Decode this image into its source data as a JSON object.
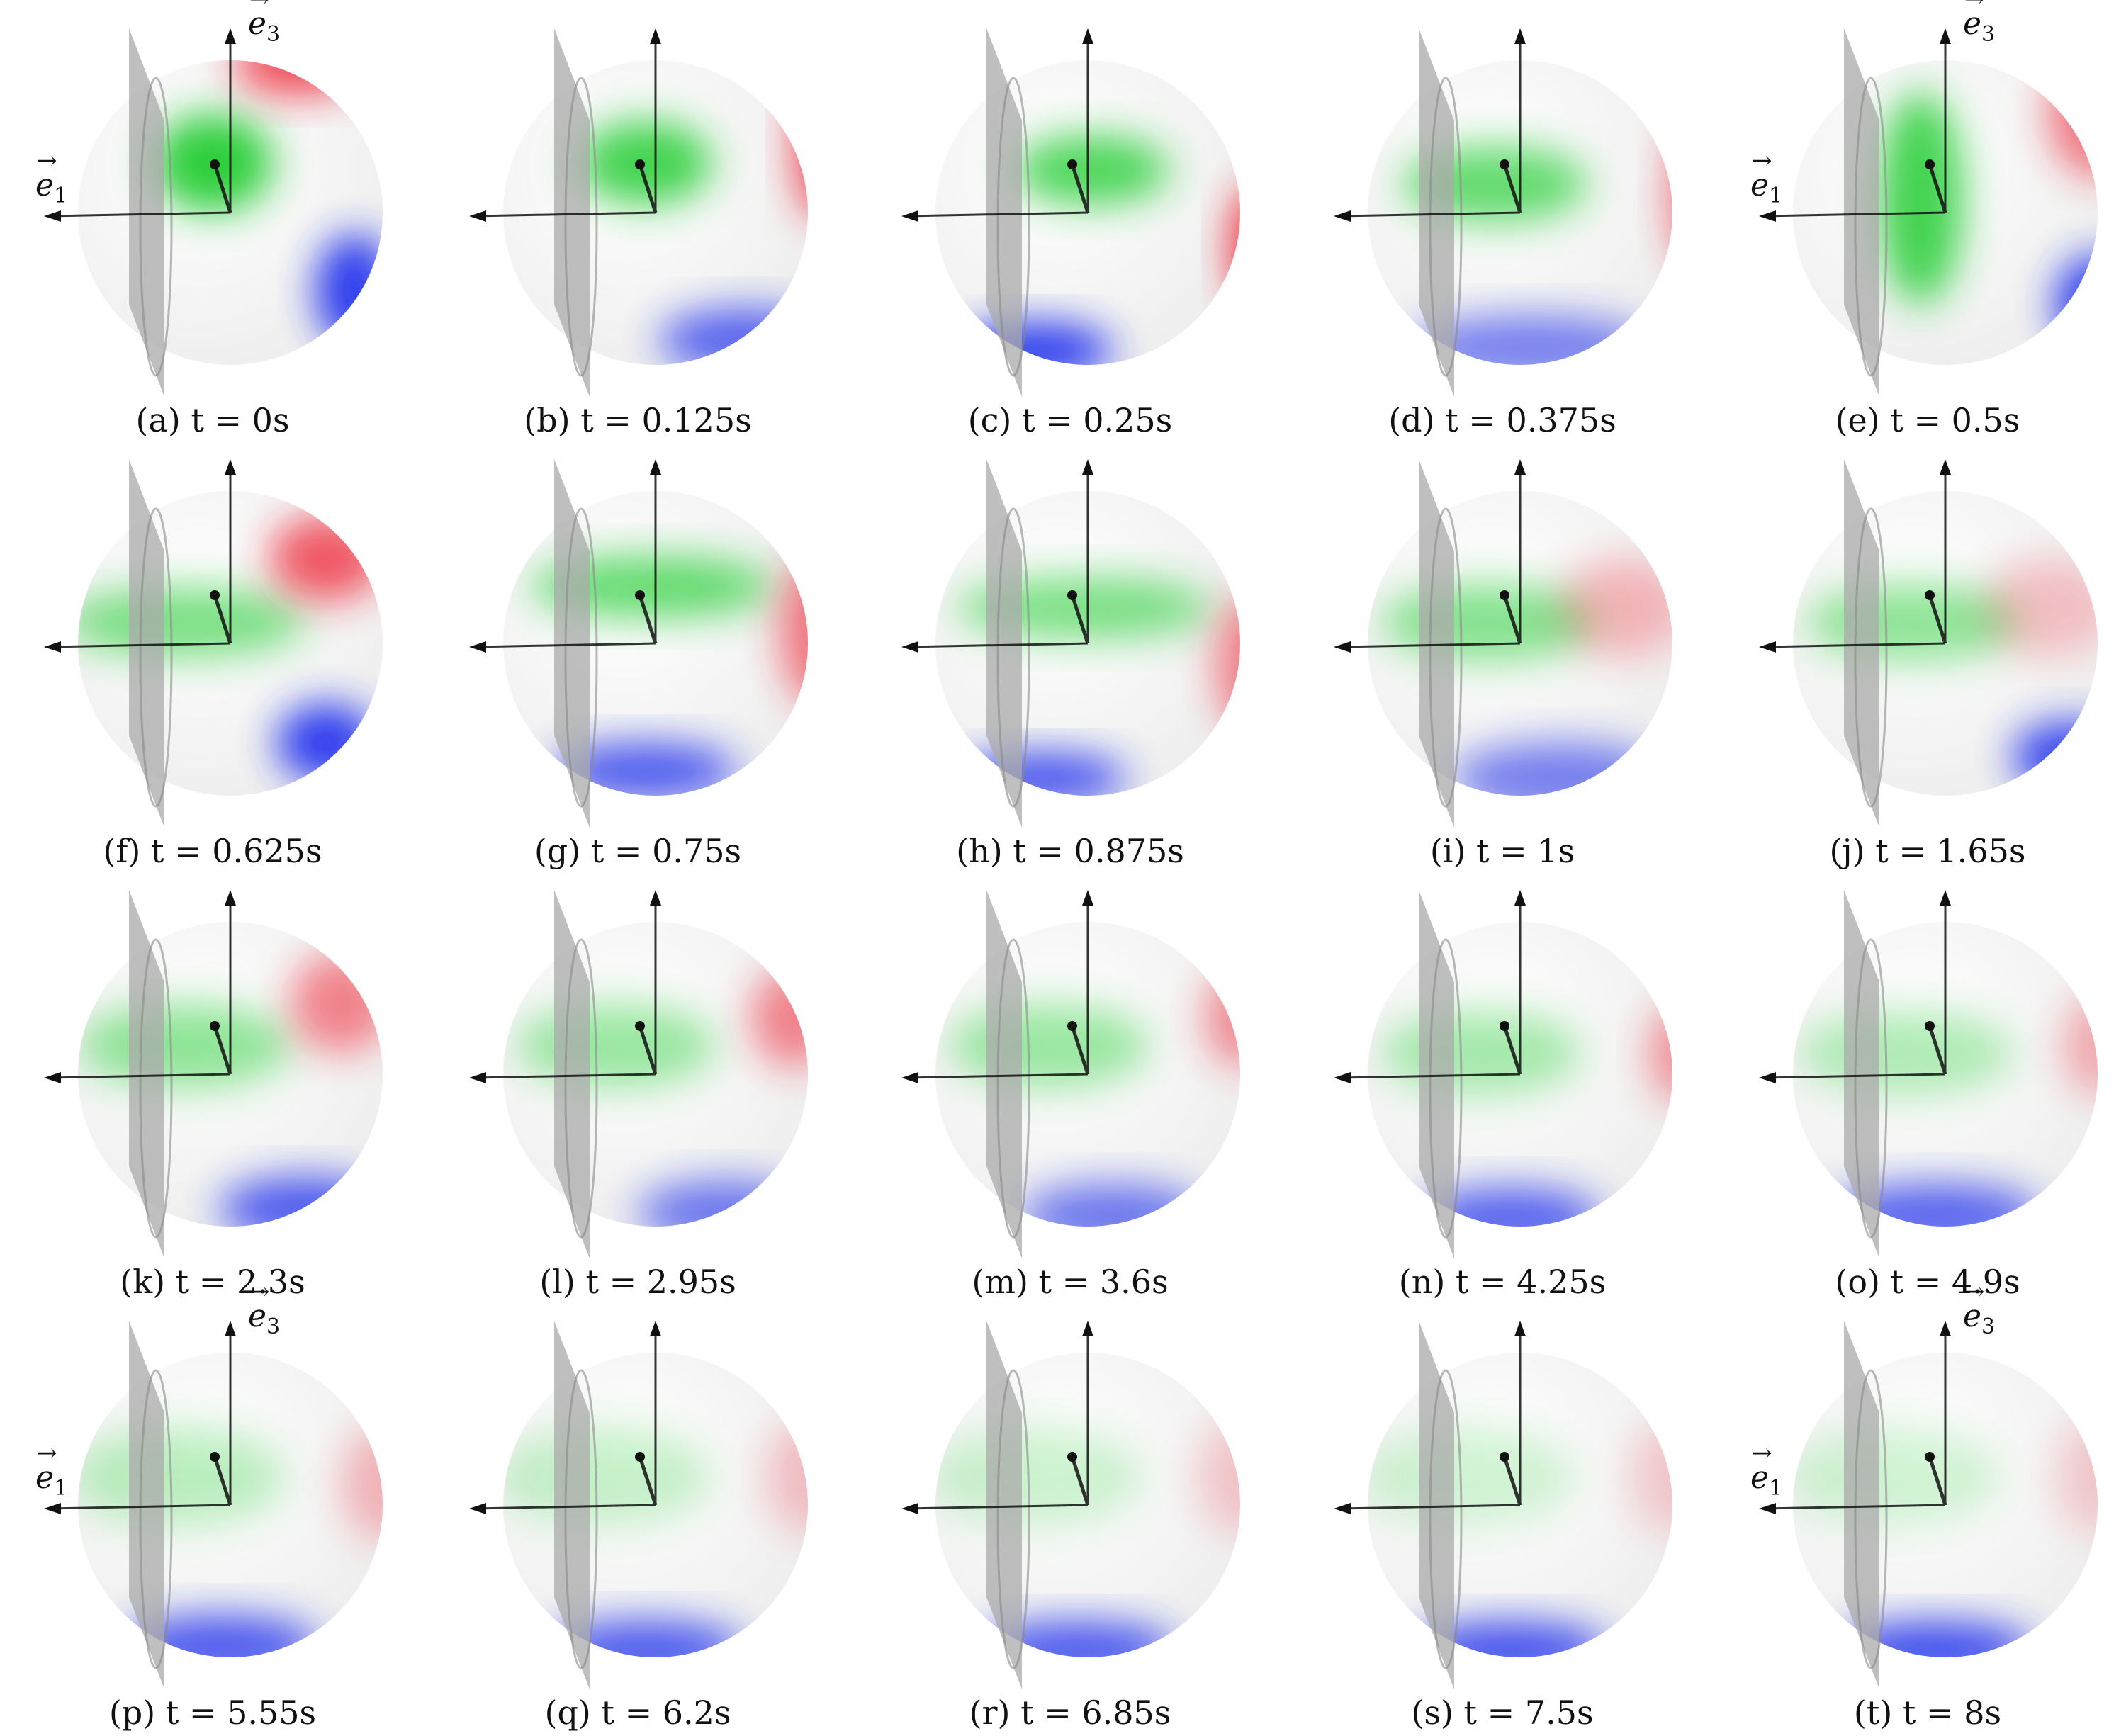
{
  "figure": {
    "axis_e1_label": "e",
    "axis_e1_sub": "1",
    "axis_e3_label": "e",
    "axis_e3_sub": "3",
    "colors": {
      "green": "#22cc33",
      "red": "#ee2233",
      "blue": "#2233ee",
      "sphere": "#eeeeee",
      "plane": "#a9a9a9",
      "axis": "#111111"
    },
    "panels": [
      {
        "caption": "(a) t = 0s",
        "show_e1": true,
        "show_e3": true
      },
      {
        "caption": "(b) t = 0.125s",
        "show_e1": false,
        "show_e3": false
      },
      {
        "caption": "(c) t = 0.25s",
        "show_e1": false,
        "show_e3": false
      },
      {
        "caption": "(d) t = 0.375s",
        "show_e1": false,
        "show_e3": false
      },
      {
        "caption": "(e) t = 0.5s",
        "show_e1": true,
        "show_e3": true
      },
      {
        "caption": "(f) t = 0.625s",
        "show_e1": false,
        "show_e3": false
      },
      {
        "caption": "(g) t = 0.75s",
        "show_e1": false,
        "show_e3": false
      },
      {
        "caption": "(h) t = 0.875s",
        "show_e1": false,
        "show_e3": false
      },
      {
        "caption": "(i) t = 1s",
        "show_e1": false,
        "show_e3": false
      },
      {
        "caption": "(j) t = 1.65s",
        "show_e1": false,
        "show_e3": false
      },
      {
        "caption": "(k) t = 2.3s",
        "show_e1": false,
        "show_e3": false
      },
      {
        "caption": "(l) t = 2.95s",
        "show_e1": false,
        "show_e3": false
      },
      {
        "caption": "(m) t = 3.6s",
        "show_e1": false,
        "show_e3": false
      },
      {
        "caption": "(n) t = 4.25s",
        "show_e1": false,
        "show_e3": false
      },
      {
        "caption": "(o) t = 4.9s",
        "show_e1": false,
        "show_e3": false
      },
      {
        "caption": "(p) t = 5.55s",
        "show_e1": true,
        "show_e3": true
      },
      {
        "caption": "(q) t = 6.2s",
        "show_e1": false,
        "show_e3": false
      },
      {
        "caption": "(r) t = 6.85s",
        "show_e1": false,
        "show_e3": false
      },
      {
        "caption": "(s) t = 7.5s",
        "show_e1": false,
        "show_e3": false
      },
      {
        "caption": "(t) t = 8s",
        "show_e1": true,
        "show_e3": true
      }
    ]
  }
}
